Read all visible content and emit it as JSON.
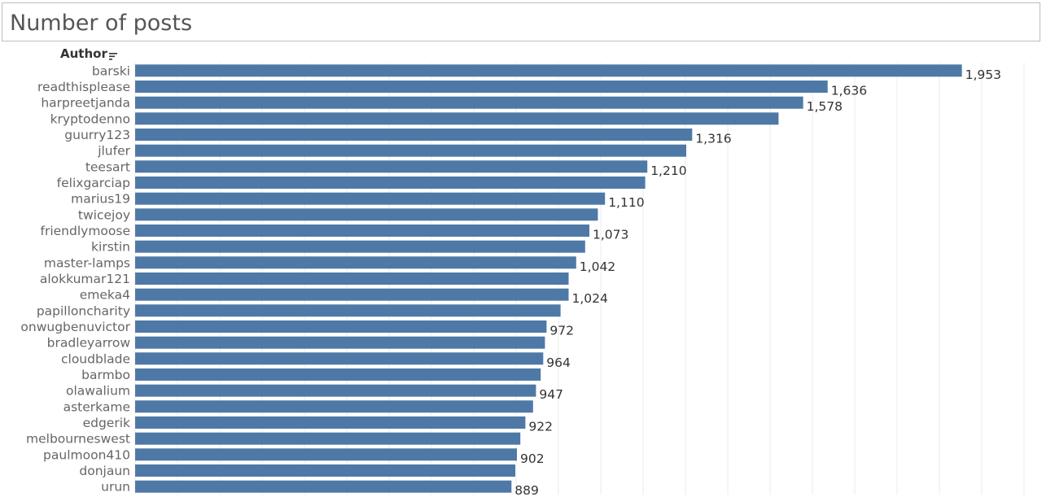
{
  "title": "Number of posts",
  "column_header": "Author",
  "icons": {
    "sort": "sort-descending-icon"
  },
  "colors": {
    "bar": "#4e79a7"
  },
  "chart_data": {
    "type": "bar",
    "orientation": "horizontal",
    "title": "Number of posts",
    "ylabel": "Author",
    "xlim": [
      0,
      2100
    ],
    "grid": true,
    "categories": [
      "barski",
      "readthisplease",
      "harpreetjanda",
      "kryptodenno",
      "guurry123",
      "jlufer",
      "teesart",
      "felixgarciap",
      "marius19",
      "twicejoy",
      "friendlymoose",
      "kirstin",
      "master-lamps",
      "alokkumar121",
      "emeka4",
      "papilloncharity",
      "onwugbenuvictor",
      "bradleyarrow",
      "cloudblade",
      "barmbo",
      "olawalium",
      "asterkame",
      "edgerik",
      "melbourneswest",
      "paulmoon410",
      "donjaun",
      "urun"
    ],
    "values": [
      1953,
      1636,
      1578,
      1520,
      1316,
      1302,
      1210,
      1205,
      1110,
      1093,
      1073,
      1063,
      1042,
      1024,
      1024,
      1005,
      972,
      968,
      964,
      958,
      947,
      940,
      922,
      910,
      902,
      898,
      889
    ],
    "value_labels": [
      "1,953",
      "1,636",
      "1,578",
      "",
      "1,316",
      "",
      "1,210",
      "",
      "1,110",
      "",
      "1,073",
      "",
      "1,042",
      "",
      "1,024",
      "",
      "972",
      "",
      "964",
      "",
      "947",
      "",
      "922",
      "",
      "902",
      "",
      "889"
    ]
  }
}
